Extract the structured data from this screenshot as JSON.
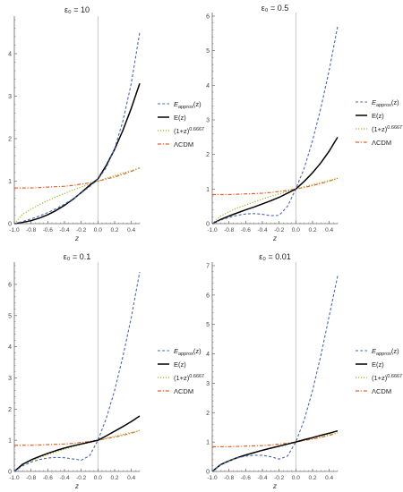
{
  "figure": {
    "x_label": "z",
    "legend_labels": [
      "E_approx(z)",
      "E(z)",
      "(1+z)^0.6667",
      "ΛCDM"
    ],
    "colors": {
      "approx": "#4a66b5",
      "exact": "#000000",
      "power": "#a7b32b",
      "lcdm": "#e8622a",
      "zero_line": "#b9b9b9",
      "axis": "#666666"
    }
  },
  "chart_data": [
    {
      "type": "line",
      "title": "ε₀ = 10",
      "xlabel": "z",
      "xlim": [
        -1.0,
        0.5
      ],
      "ylim": [
        0,
        4.8
      ],
      "x_ticks": [
        -1.0,
        -0.8,
        -0.6,
        -0.4,
        -0.2,
        0.0,
        0.2,
        0.4
      ],
      "y_ticks": [
        0,
        1,
        2,
        3,
        4
      ],
      "legend_position": "right",
      "series": [
        {
          "name": "E_approx(z)",
          "x": [
            -1.0,
            -0.9,
            -0.8,
            -0.7,
            -0.6,
            -0.5,
            -0.4,
            -0.3,
            -0.2,
            -0.1,
            0.0,
            0.1,
            0.2,
            0.3,
            0.4,
            0.5
          ],
          "y": [
            0.0,
            0.05,
            0.11,
            0.18,
            0.26,
            0.35,
            0.46,
            0.58,
            0.72,
            0.87,
            1.04,
            1.32,
            1.77,
            2.42,
            3.31,
            4.5
          ]
        },
        {
          "name": "E(z)",
          "x": [
            -1.0,
            -0.9,
            -0.8,
            -0.7,
            -0.6,
            -0.5,
            -0.4,
            -0.3,
            -0.2,
            -0.1,
            0.0,
            0.1,
            0.2,
            0.3,
            0.4,
            0.5
          ],
          "y": [
            0.0,
            0.03,
            0.07,
            0.13,
            0.21,
            0.31,
            0.43,
            0.57,
            0.73,
            0.9,
            1.05,
            1.37,
            1.75,
            2.2,
            2.72,
            3.3
          ]
        },
        {
          "name": "(1+z)^0.6667",
          "x": [
            -1.0,
            -0.9,
            -0.8,
            -0.7,
            -0.6,
            -0.5,
            -0.4,
            -0.3,
            -0.2,
            -0.1,
            0.0,
            0.1,
            0.2,
            0.3,
            0.4,
            0.5
          ],
          "y": [
            0.0,
            0.22,
            0.34,
            0.45,
            0.54,
            0.63,
            0.71,
            0.79,
            0.86,
            0.93,
            1.0,
            1.07,
            1.13,
            1.19,
            1.25,
            1.31
          ]
        },
        {
          "name": "ΛCDM",
          "x": [
            -1.0,
            -0.9,
            -0.8,
            -0.7,
            -0.6,
            -0.5,
            -0.4,
            -0.3,
            -0.2,
            -0.1,
            0.0,
            0.1,
            0.2,
            0.3,
            0.4,
            0.5
          ],
          "y": [
            0.84,
            0.84,
            0.84,
            0.85,
            0.86,
            0.87,
            0.88,
            0.9,
            0.93,
            0.96,
            1.0,
            1.05,
            1.1,
            1.16,
            1.23,
            1.31
          ]
        }
      ]
    },
    {
      "type": "line",
      "title": "ε₀ = 0.5",
      "xlabel": "z",
      "xlim": [
        -1.0,
        0.5
      ],
      "ylim": [
        0,
        6.0
      ],
      "x_ticks": [
        -1.0,
        -0.8,
        -0.6,
        -0.4,
        -0.2,
        0.0,
        0.2,
        0.4
      ],
      "y_ticks": [
        0,
        1,
        2,
        3,
        4,
        5,
        6
      ],
      "legend_position": "right",
      "series": [
        {
          "name": "E_approx(z)",
          "x": [
            -1.0,
            -0.9,
            -0.8,
            -0.7,
            -0.6,
            -0.5,
            -0.4,
            -0.3,
            -0.2,
            -0.1,
            0.0,
            0.1,
            0.2,
            0.3,
            0.4,
            0.5
          ],
          "y": [
            0.0,
            0.1,
            0.18,
            0.24,
            0.28,
            0.29,
            0.27,
            0.23,
            0.24,
            0.5,
            1.0,
            1.6,
            2.4,
            3.35,
            4.45,
            5.7
          ]
        },
        {
          "name": "E(z)",
          "x": [
            -1.0,
            -0.9,
            -0.8,
            -0.7,
            -0.6,
            -0.5,
            -0.4,
            -0.3,
            -0.2,
            -0.1,
            0.0,
            0.1,
            0.2,
            0.3,
            0.4,
            0.5
          ],
          "y": [
            0.0,
            0.12,
            0.22,
            0.31,
            0.4,
            0.48,
            0.57,
            0.66,
            0.76,
            0.88,
            1.0,
            1.22,
            1.47,
            1.76,
            2.1,
            2.5
          ]
        },
        {
          "name": "(1+z)^0.6667",
          "x": [
            -1.0,
            -0.9,
            -0.8,
            -0.7,
            -0.6,
            -0.5,
            -0.4,
            -0.3,
            -0.2,
            -0.1,
            0.0,
            0.1,
            0.2,
            0.3,
            0.4,
            0.5
          ],
          "y": [
            0.0,
            0.22,
            0.34,
            0.45,
            0.54,
            0.63,
            0.71,
            0.79,
            0.86,
            0.93,
            1.0,
            1.07,
            1.13,
            1.19,
            1.25,
            1.31
          ]
        },
        {
          "name": "ΛCDM",
          "x": [
            -1.0,
            -0.9,
            -0.8,
            -0.7,
            -0.6,
            -0.5,
            -0.4,
            -0.3,
            -0.2,
            -0.1,
            0.0,
            0.1,
            0.2,
            0.3,
            0.4,
            0.5
          ],
          "y": [
            0.84,
            0.84,
            0.84,
            0.85,
            0.86,
            0.87,
            0.88,
            0.9,
            0.93,
            0.96,
            1.0,
            1.05,
            1.1,
            1.16,
            1.23,
            1.31
          ]
        }
      ]
    },
    {
      "type": "line",
      "title": "ε₀ = 0.1",
      "xlabel": "z",
      "xlim": [
        -1.0,
        0.5
      ],
      "ylim": [
        0,
        6.6
      ],
      "x_ticks": [
        -1.0,
        -0.8,
        -0.6,
        -0.4,
        -0.2,
        0.0,
        0.2,
        0.4
      ],
      "y_ticks": [
        0,
        1,
        2,
        3,
        4,
        5,
        6
      ],
      "legend_position": "right",
      "series": [
        {
          "name": "E_approx(z)",
          "x": [
            -1.0,
            -0.9,
            -0.8,
            -0.7,
            -0.6,
            -0.5,
            -0.4,
            -0.3,
            -0.2,
            -0.1,
            0.0,
            0.1,
            0.2,
            0.3,
            0.4,
            0.5
          ],
          "y": [
            0.0,
            0.18,
            0.3,
            0.38,
            0.43,
            0.45,
            0.44,
            0.4,
            0.36,
            0.5,
            1.0,
            1.7,
            2.6,
            3.7,
            4.95,
            6.4
          ]
        },
        {
          "name": "E(z)",
          "x": [
            -1.0,
            -0.9,
            -0.8,
            -0.7,
            -0.6,
            -0.5,
            -0.4,
            -0.3,
            -0.2,
            -0.1,
            0.0,
            0.1,
            0.2,
            0.3,
            0.4,
            0.5
          ],
          "y": [
            0.0,
            0.23,
            0.37,
            0.48,
            0.58,
            0.67,
            0.75,
            0.82,
            0.88,
            0.94,
            1.0,
            1.14,
            1.29,
            1.44,
            1.6,
            1.78
          ]
        },
        {
          "name": "(1+z)^0.6667",
          "x": [
            -1.0,
            -0.9,
            -0.8,
            -0.7,
            -0.6,
            -0.5,
            -0.4,
            -0.3,
            -0.2,
            -0.1,
            0.0,
            0.1,
            0.2,
            0.3,
            0.4,
            0.5
          ],
          "y": [
            0.0,
            0.22,
            0.34,
            0.45,
            0.54,
            0.63,
            0.71,
            0.79,
            0.86,
            0.93,
            1.0,
            1.07,
            1.13,
            1.19,
            1.25,
            1.31
          ]
        },
        {
          "name": "ΛCDM",
          "x": [
            -1.0,
            -0.9,
            -0.8,
            -0.7,
            -0.6,
            -0.5,
            -0.4,
            -0.3,
            -0.2,
            -0.1,
            0.0,
            0.1,
            0.2,
            0.3,
            0.4,
            0.5
          ],
          "y": [
            0.84,
            0.84,
            0.84,
            0.85,
            0.86,
            0.87,
            0.88,
            0.9,
            0.93,
            0.96,
            1.0,
            1.05,
            1.1,
            1.16,
            1.23,
            1.31
          ]
        }
      ]
    },
    {
      "type": "line",
      "title": "ε₀ = 0.01",
      "xlabel": "z",
      "xlim": [
        -1.0,
        0.5
      ],
      "ylim": [
        0,
        7.0
      ],
      "x_ticks": [
        -1.0,
        -0.8,
        -0.6,
        -0.4,
        -0.2,
        0.0,
        0.2,
        0.4
      ],
      "y_ticks": [
        0,
        1,
        2,
        3,
        4,
        5,
        6,
        7
      ],
      "legend_position": "right",
      "series": [
        {
          "name": "E_approx(z)",
          "x": [
            -1.0,
            -0.9,
            -0.8,
            -0.7,
            -0.6,
            -0.5,
            -0.4,
            -0.3,
            -0.2,
            -0.1,
            0.0,
            0.1,
            0.2,
            0.3,
            0.4,
            0.5
          ],
          "y": [
            0.0,
            0.22,
            0.36,
            0.46,
            0.52,
            0.55,
            0.55,
            0.5,
            0.42,
            0.52,
            1.0,
            1.75,
            2.75,
            3.95,
            5.3,
            6.65
          ]
        },
        {
          "name": "E(z)",
          "x": [
            -1.0,
            -0.9,
            -0.8,
            -0.7,
            -0.6,
            -0.5,
            -0.4,
            -0.3,
            -0.2,
            -0.1,
            0.0,
            0.1,
            0.2,
            0.3,
            0.4,
            0.5
          ],
          "y": [
            0.0,
            0.23,
            0.36,
            0.47,
            0.56,
            0.64,
            0.72,
            0.79,
            0.86,
            0.93,
            1.0,
            1.08,
            1.15,
            1.23,
            1.3,
            1.38
          ]
        },
        {
          "name": "(1+z)^0.6667",
          "x": [
            -1.0,
            -0.9,
            -0.8,
            -0.7,
            -0.6,
            -0.5,
            -0.4,
            -0.3,
            -0.2,
            -0.1,
            0.0,
            0.1,
            0.2,
            0.3,
            0.4,
            0.5
          ],
          "y": [
            0.0,
            0.22,
            0.34,
            0.45,
            0.54,
            0.63,
            0.71,
            0.79,
            0.86,
            0.93,
            1.0,
            1.07,
            1.13,
            1.19,
            1.25,
            1.31
          ]
        },
        {
          "name": "ΛCDM",
          "x": [
            -1.0,
            -0.9,
            -0.8,
            -0.7,
            -0.6,
            -0.5,
            -0.4,
            -0.3,
            -0.2,
            -0.1,
            0.0,
            0.1,
            0.2,
            0.3,
            0.4,
            0.5
          ],
          "y": [
            0.84,
            0.84,
            0.84,
            0.85,
            0.86,
            0.87,
            0.88,
            0.9,
            0.93,
            0.96,
            1.0,
            1.05,
            1.1,
            1.16,
            1.23,
            1.31
          ]
        }
      ]
    }
  ]
}
